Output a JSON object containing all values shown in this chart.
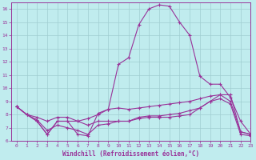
{
  "xlabel": "Windchill (Refroidissement éolien,°C)",
  "xlim": [
    -0.5,
    23
  ],
  "ylim": [
    6,
    16.5
  ],
  "yticks": [
    6,
    7,
    8,
    9,
    10,
    11,
    12,
    13,
    14,
    15,
    16
  ],
  "xticks": [
    0,
    1,
    2,
    3,
    4,
    5,
    6,
    7,
    8,
    9,
    10,
    11,
    12,
    13,
    14,
    15,
    16,
    17,
    18,
    19,
    20,
    21,
    22,
    23
  ],
  "bg_color": "#c0ecee",
  "grid_color": "#a0cdd0",
  "line_color": "#993399",
  "marker": "+",
  "markersize": 3,
  "linewidth": 0.8,
  "series": [
    [
      8.6,
      8.0,
      7.5,
      6.5,
      7.5,
      7.5,
      6.5,
      6.4,
      8.1,
      8.4,
      8.5,
      8.4,
      8.5,
      8.6,
      8.7,
      8.8,
      8.9,
      9.0,
      9.2,
      9.4,
      9.5,
      9.0,
      6.7,
      6.5
    ],
    [
      8.6,
      8.0,
      7.5,
      6.5,
      7.5,
      7.5,
      7.5,
      7.7,
      8.0,
      8.4,
      11.8,
      12.3,
      14.8,
      16.0,
      16.3,
      16.2,
      15.0,
      14.0,
      10.9,
      10.3,
      10.3,
      9.3,
      7.5,
      6.5
    ],
    [
      8.6,
      8.0,
      7.8,
      7.5,
      7.8,
      7.8,
      7.5,
      7.2,
      7.5,
      7.5,
      7.5,
      7.5,
      7.8,
      7.9,
      7.9,
      8.0,
      8.1,
      8.3,
      8.5,
      9.0,
      9.5,
      9.5,
      6.7,
      6.5
    ],
    [
      8.6,
      8.0,
      7.6,
      6.8,
      7.2,
      7.0,
      6.8,
      6.5,
      7.2,
      7.3,
      7.5,
      7.5,
      7.7,
      7.8,
      7.8,
      7.8,
      7.9,
      8.0,
      8.5,
      9.0,
      9.2,
      8.8,
      6.5,
      6.4
    ]
  ]
}
